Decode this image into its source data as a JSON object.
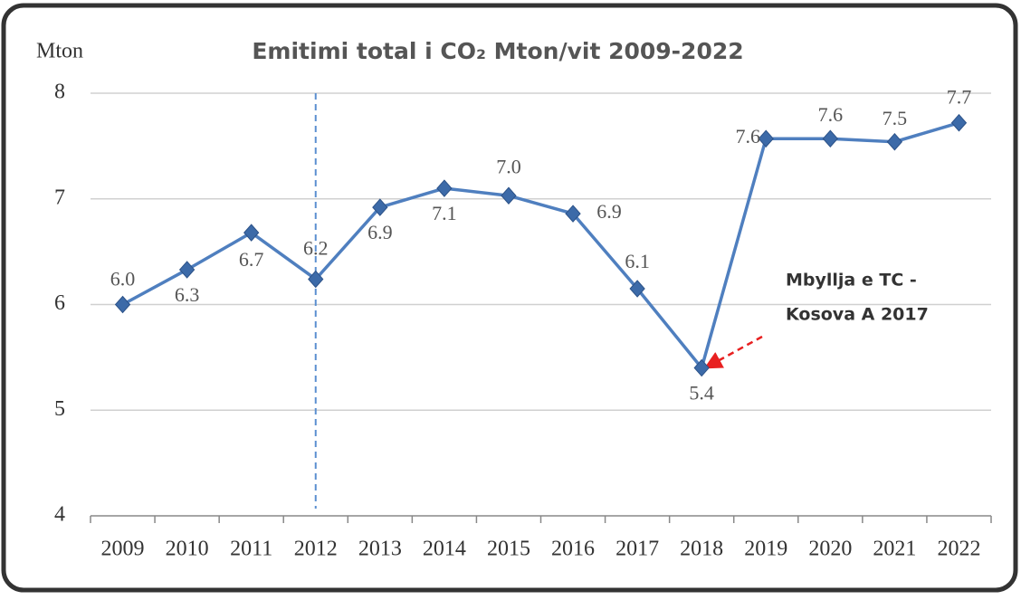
{
  "chart_data": {
    "type": "line",
    "title": "Emitimi total i CO₂ Mton/vit 2009-2022",
    "ylabel": "Mton",
    "categories": [
      "2009",
      "2010",
      "2011",
      "2012",
      "2013",
      "2014",
      "2015",
      "2016",
      "2017",
      "2018",
      "2019",
      "2020",
      "2021",
      "2022"
    ],
    "series": [
      {
        "name": "Emitimi total i CO₂",
        "color": "#4f7fbf",
        "values": [
          6.0,
          6.33,
          6.68,
          6.24,
          6.92,
          7.1,
          7.03,
          6.86,
          6.15,
          5.4,
          7.57,
          7.57,
          7.54,
          7.72
        ],
        "value_labels": [
          "6.0",
          "6.3",
          "6.7",
          "6.2",
          "6.9",
          "7.1",
          "7.0",
          "6.9",
          "6.1",
          "5.4",
          "7.6",
          "7.6",
          "7.5",
          "7.7"
        ]
      }
    ],
    "ylim": [
      4,
      8
    ],
    "yticks": [
      4,
      5,
      6,
      7,
      8
    ],
    "grid": true,
    "marker_line": "2012",
    "annotation": [
      "Mbyllja e TC  -",
      "Kosova A 2017"
    ]
  }
}
